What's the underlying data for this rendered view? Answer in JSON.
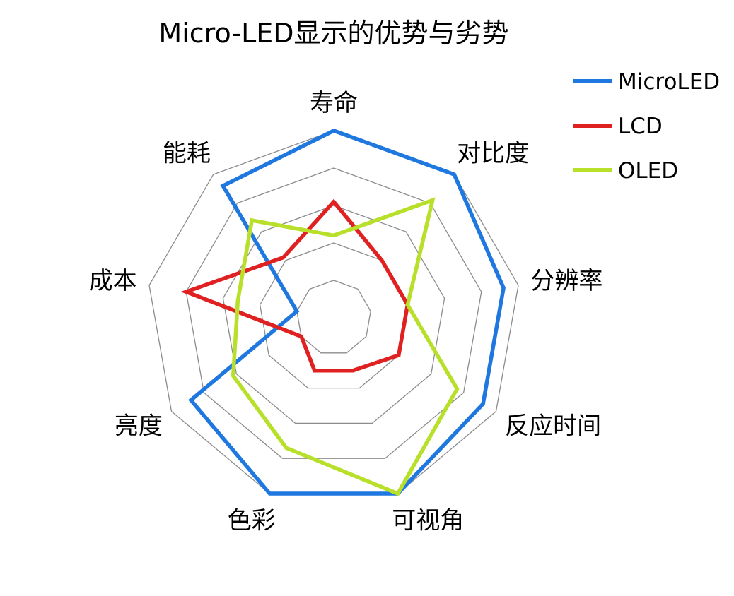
{
  "chart_data": {
    "type": "radar",
    "title": "Micro-LED显示的优势与劣势",
    "axes": [
      "寿命",
      "对比度",
      "分辨率",
      "反应时间",
      "可视角",
      "色彩",
      "亮度",
      "成本",
      "能耗"
    ],
    "scale": [
      0,
      5
    ],
    "gridlines": 5,
    "legend_position": "top-right",
    "series": [
      {
        "name": "MicroLED",
        "color": "#1f77e0",
        "values": [
          5,
          5,
          4.6,
          4.6,
          5,
          5,
          4.4,
          1,
          4.6
        ]
      },
      {
        "name": "LCD",
        "color": "#e02121",
        "values": [
          3.1,
          2,
          2,
          2,
          1.5,
          1.5,
          1,
          4,
          2.1
        ]
      },
      {
        "name": "OLED",
        "color": "#b8e02b",
        "values": [
          2.2,
          4.1,
          2,
          3.8,
          5,
          3.7,
          3.1,
          2.6,
          3.4
        ]
      }
    ]
  }
}
